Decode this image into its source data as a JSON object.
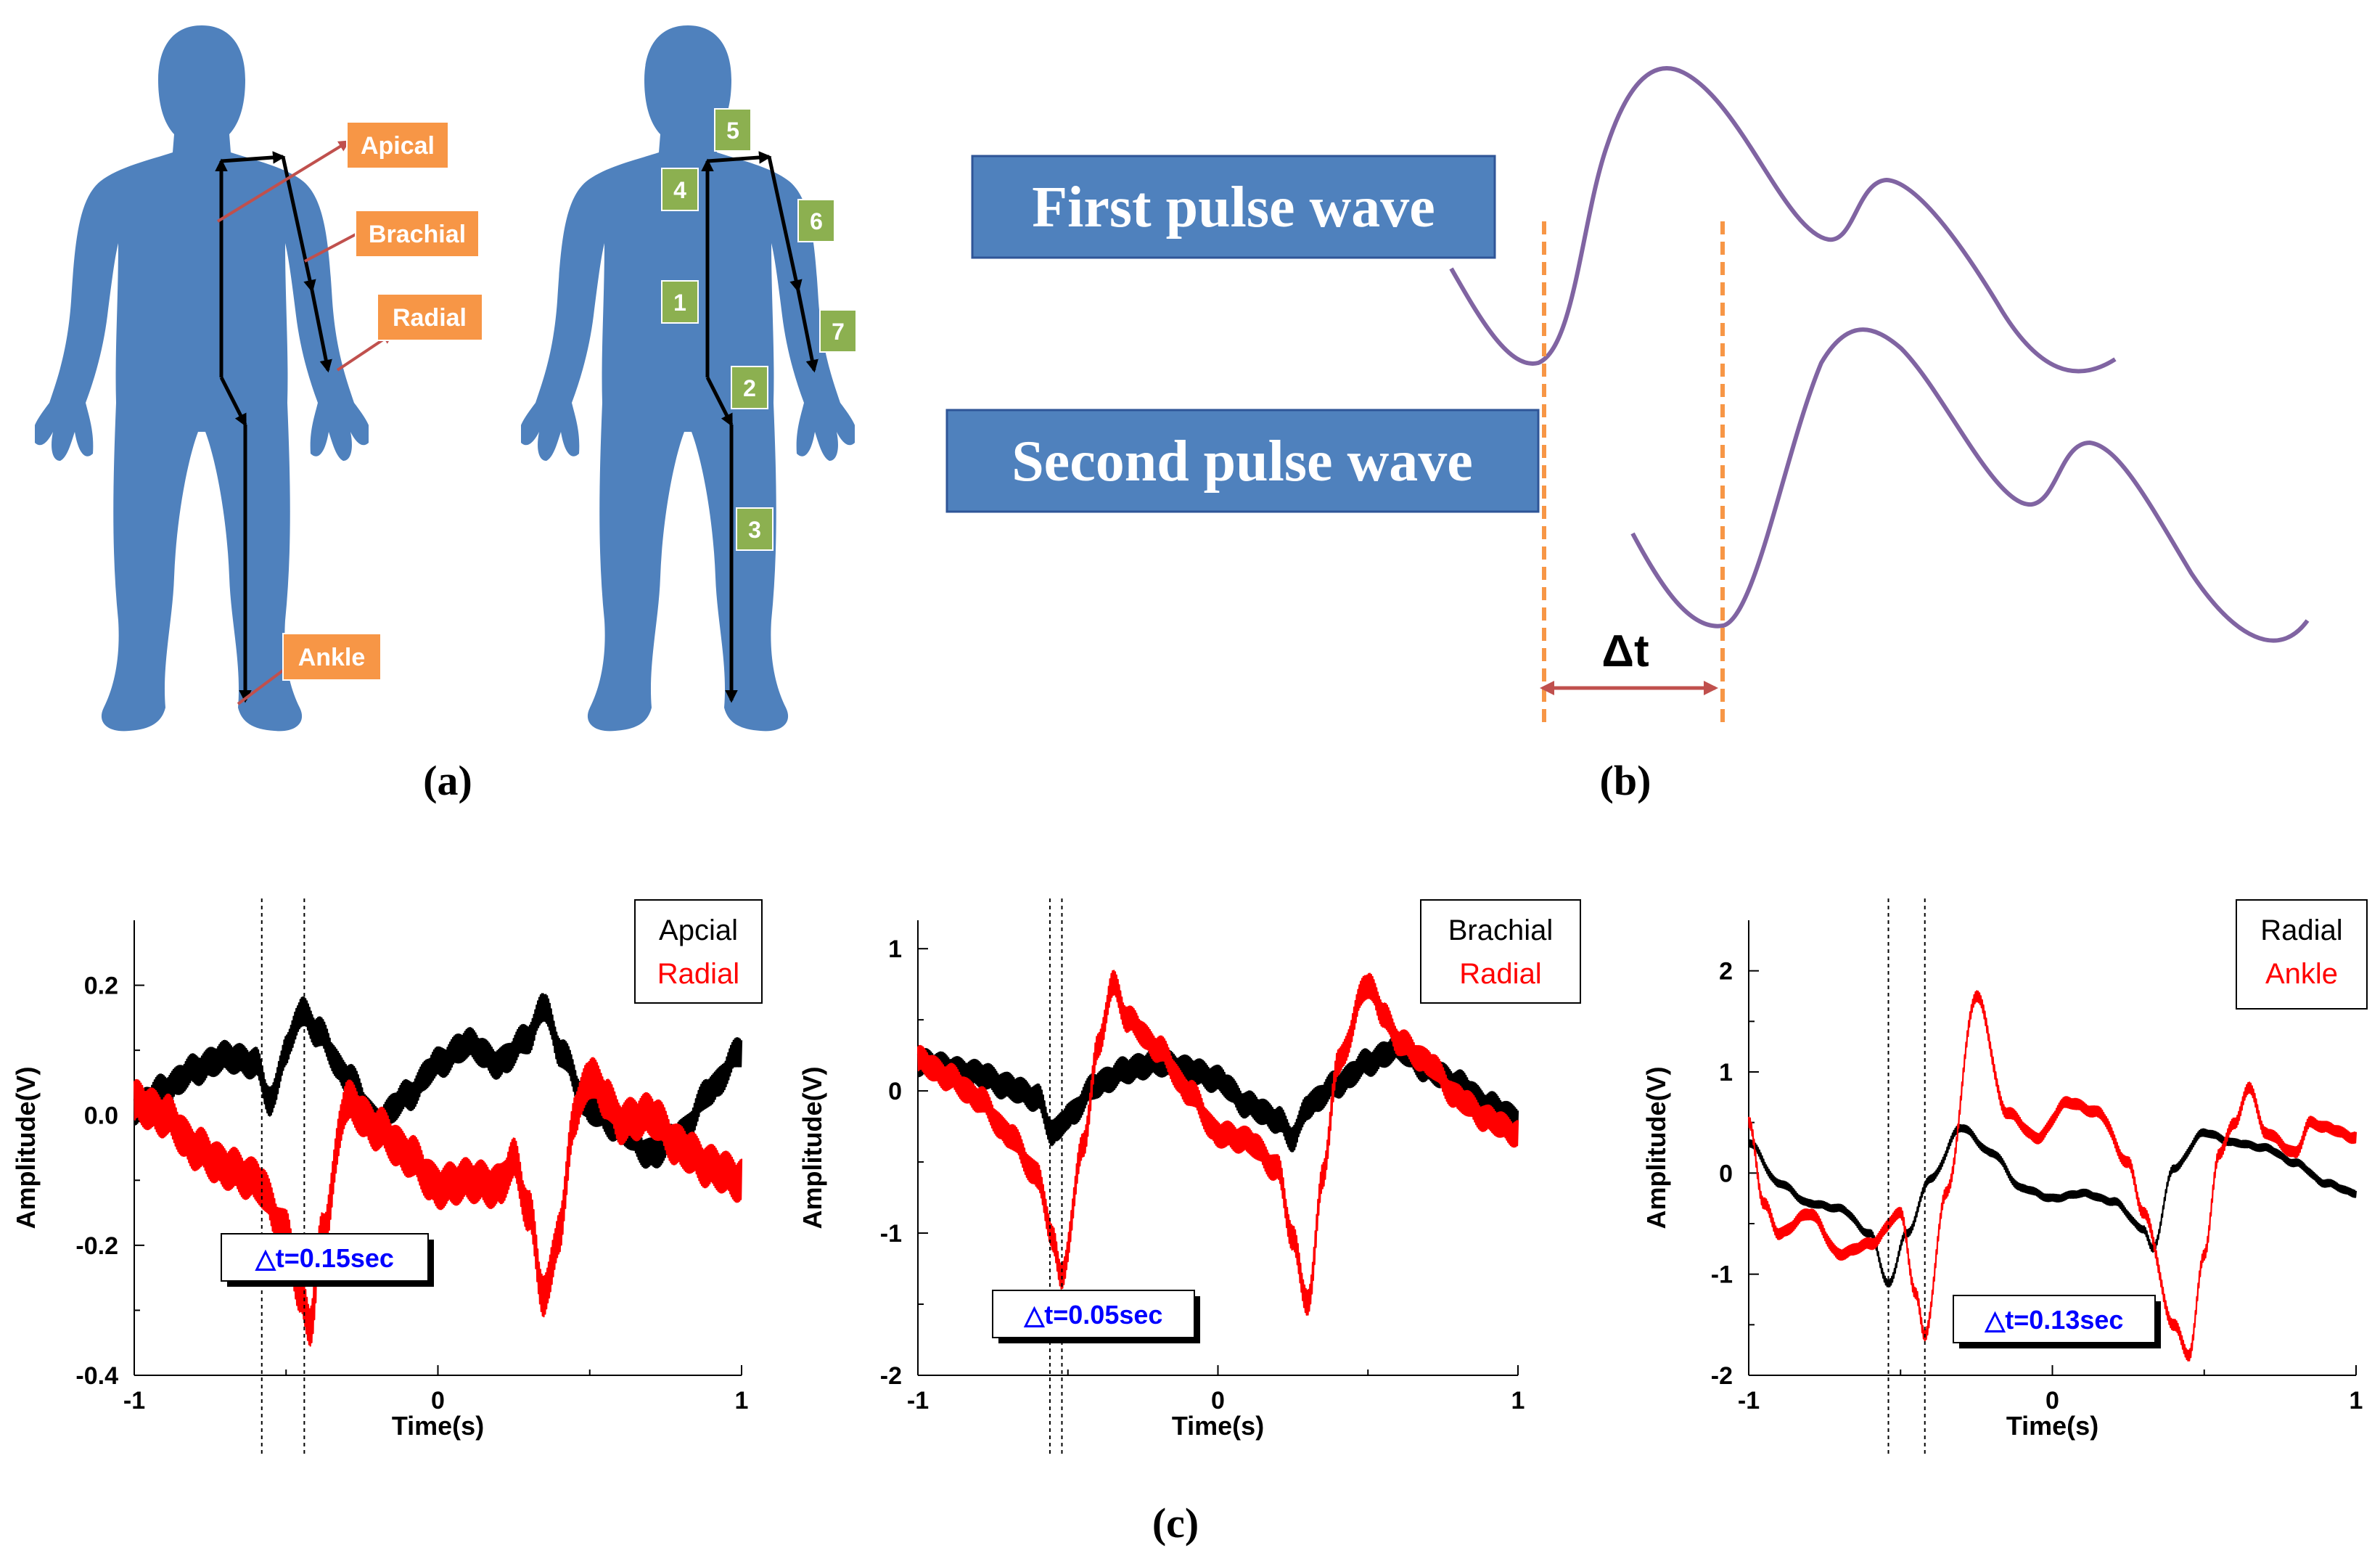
{
  "panel_labels": {
    "a": "(a)",
    "b": "(b)",
    "c": "(c)"
  },
  "panel_a": {
    "left_figure_labels": [
      "Apical",
      "Brachial",
      "Radial",
      "Ankle"
    ],
    "right_figure_segments": [
      "5",
      "4",
      "6",
      "1",
      "7",
      "2",
      "3"
    ],
    "colors": {
      "body": "#4f81bd",
      "label_box": "#f79646",
      "segment_box": "#8cb050",
      "pointer": "#c0504d",
      "path": "#000000"
    }
  },
  "panel_b": {
    "first_label": "First pulse wave",
    "second_label": "Second pulse wave",
    "delta_label": "Δt",
    "colors": {
      "label_box": "#4f81bd",
      "wave": "#8064a2",
      "marker": "#f79646",
      "arrow": "#c0504d"
    }
  },
  "chart_data": [
    {
      "type": "line",
      "xlabel": "Time(s)",
      "ylabel": "Amplitude(V)",
      "xlim": [
        -1,
        1
      ],
      "ylim": [
        -0.4,
        0.3
      ],
      "xticks": [
        "-1",
        "0",
        "1"
      ],
      "yticks": [
        "0.2",
        "0.0",
        "-0.2",
        "-0.4"
      ],
      "ytick_values": [
        0.2,
        0.0,
        -0.2,
        -0.4
      ],
      "legend": [
        "Apcial",
        "Radial"
      ],
      "annotation": "△t=0.15sec",
      "markers": [
        -0.58,
        -0.44
      ],
      "series": [
        {
          "name": "Apcial",
          "color": "#000000",
          "noise": 0.025,
          "x": [
            -1,
            -0.9,
            -0.8,
            -0.7,
            -0.6,
            -0.55,
            -0.5,
            -0.45,
            -0.4,
            -0.3,
            -0.2,
            -0.1,
            0,
            0.1,
            0.2,
            0.3,
            0.35,
            0.4,
            0.5,
            0.6,
            0.7,
            0.8,
            0.9,
            1
          ],
          "y": [
            0.01,
            0.04,
            0.07,
            0.09,
            0.08,
            0.02,
            0.1,
            0.16,
            0.13,
            0.06,
            -0.01,
            0.03,
            0.08,
            0.11,
            0.08,
            0.12,
            0.17,
            0.1,
            0.01,
            -0.02,
            -0.06,
            -0.03,
            0.04,
            0.1
          ]
        },
        {
          "name": "Radial",
          "color": "#ff0000",
          "noise": 0.035,
          "x": [
            -1,
            -0.9,
            -0.8,
            -0.7,
            -0.6,
            -0.5,
            -0.45,
            -0.42,
            -0.38,
            -0.3,
            -0.2,
            -0.1,
            0,
            0.1,
            0.2,
            0.25,
            0.3,
            0.35,
            0.4,
            0.45,
            0.5,
            0.55,
            0.6,
            0.7,
            0.8,
            0.9,
            1
          ],
          "y": [
            0.02,
            0.0,
            -0.05,
            -0.08,
            -0.1,
            -0.18,
            -0.28,
            -0.32,
            -0.18,
            0.02,
            -0.02,
            -0.06,
            -0.11,
            -0.1,
            -0.11,
            -0.07,
            -0.15,
            -0.28,
            -0.18,
            0.0,
            0.06,
            0.03,
            -0.01,
            0.0,
            -0.05,
            -0.08,
            -0.1
          ]
        }
      ]
    },
    {
      "type": "line",
      "xlabel": "Time(s)",
      "ylabel": "Amplitude(V)",
      "xlim": [
        -1,
        1
      ],
      "ylim": [
        -2,
        1.2
      ],
      "xticks": [
        "-1",
        "0",
        "1"
      ],
      "yticks": [
        "1",
        "0",
        "-1",
        "-2"
      ],
      "ytick_values": [
        1,
        0,
        -1,
        -2
      ],
      "legend": [
        "Brachial",
        "Radial"
      ],
      "annotation": "△t=0.05sec",
      "markers": [
        -0.56,
        -0.52
      ],
      "series": [
        {
          "name": "Brachial",
          "color": "#000000",
          "noise": 0.1,
          "x": [
            -1,
            -0.8,
            -0.7,
            -0.6,
            -0.55,
            -0.5,
            -0.4,
            -0.3,
            -0.2,
            -0.1,
            0,
            0.1,
            0.2,
            0.25,
            0.3,
            0.4,
            0.5,
            0.6,
            0.7,
            0.8,
            0.9,
            1
          ],
          "y": [
            0.2,
            0.12,
            0.03,
            -0.05,
            -0.3,
            -0.18,
            0.05,
            0.15,
            0.2,
            0.15,
            0.08,
            -0.1,
            -0.2,
            -0.33,
            -0.1,
            0.05,
            0.2,
            0.3,
            0.15,
            0.05,
            -0.1,
            -0.2
          ]
        },
        {
          "name": "Radial",
          "color": "#ff0000",
          "noise": 0.1,
          "x": [
            -1,
            -0.9,
            -0.8,
            -0.7,
            -0.6,
            -0.55,
            -0.52,
            -0.45,
            -0.4,
            -0.35,
            -0.3,
            -0.2,
            -0.1,
            0,
            0.1,
            0.2,
            0.25,
            0.3,
            0.35,
            0.4,
            0.5,
            0.55,
            0.6,
            0.7,
            0.8,
            0.9,
            1
          ],
          "y": [
            0.22,
            0.1,
            -0.05,
            -0.3,
            -0.6,
            -1.05,
            -1.3,
            -0.4,
            0.3,
            0.75,
            0.5,
            0.3,
            0.0,
            -0.3,
            -0.35,
            -0.55,
            -1.05,
            -1.5,
            -0.6,
            0.2,
            0.75,
            0.55,
            0.35,
            0.2,
            -0.05,
            -0.2,
            -0.3
          ]
        }
      ]
    },
    {
      "type": "line",
      "xlabel": "Time(s)",
      "ylabel": "Amplitude(V)",
      "xlim": [
        -1,
        1
      ],
      "ylim": [
        -2,
        2.5
      ],
      "xticks": [
        "-1",
        "0",
        "1"
      ],
      "yticks": [
        "2",
        "1",
        "0",
        "-1",
        "-2"
      ],
      "ytick_values": [
        2,
        1,
        0,
        -1,
        -2
      ],
      "legend": [
        "Radial",
        "Ankle"
      ],
      "annotation": "△t=0.13sec",
      "markers": [
        -0.54,
        -0.42
      ],
      "series": [
        {
          "name": "Radial",
          "color": "#000000",
          "noise": 0.04,
          "x": [
            -1,
            -0.9,
            -0.8,
            -0.7,
            -0.6,
            -0.54,
            -0.48,
            -0.4,
            -0.3,
            -0.2,
            -0.1,
            0,
            0.1,
            0.2,
            0.3,
            0.33,
            0.4,
            0.5,
            0.6,
            0.7,
            0.8,
            0.9,
            1
          ],
          "y": [
            0.3,
            -0.1,
            -0.3,
            -0.35,
            -0.6,
            -1.1,
            -0.6,
            -0.05,
            0.45,
            0.2,
            -0.15,
            -0.25,
            -0.2,
            -0.28,
            -0.55,
            -0.75,
            0.05,
            0.4,
            0.3,
            0.25,
            0.1,
            -0.1,
            -0.2
          ]
        },
        {
          "name": "Ankle",
          "color": "#ff0000",
          "noise": 0.06,
          "x": [
            -1,
            -0.95,
            -0.9,
            -0.8,
            -0.7,
            -0.6,
            -0.5,
            -0.45,
            -0.42,
            -0.35,
            -0.25,
            -0.15,
            -0.05,
            0.05,
            0.15,
            0.25,
            0.3,
            0.4,
            0.45,
            0.5,
            0.55,
            0.6,
            0.65,
            0.7,
            0.8,
            0.85,
            0.9,
            1
          ],
          "y": [
            0.5,
            -0.3,
            -0.6,
            -0.4,
            -0.8,
            -0.7,
            -0.4,
            -1.2,
            -1.6,
            -0.2,
            1.75,
            0.6,
            0.35,
            0.7,
            0.6,
            0.1,
            -0.4,
            -1.5,
            -1.8,
            -0.8,
            0.2,
            0.5,
            0.85,
            0.4,
            0.2,
            0.5,
            0.45,
            0.35
          ]
        }
      ]
    }
  ]
}
